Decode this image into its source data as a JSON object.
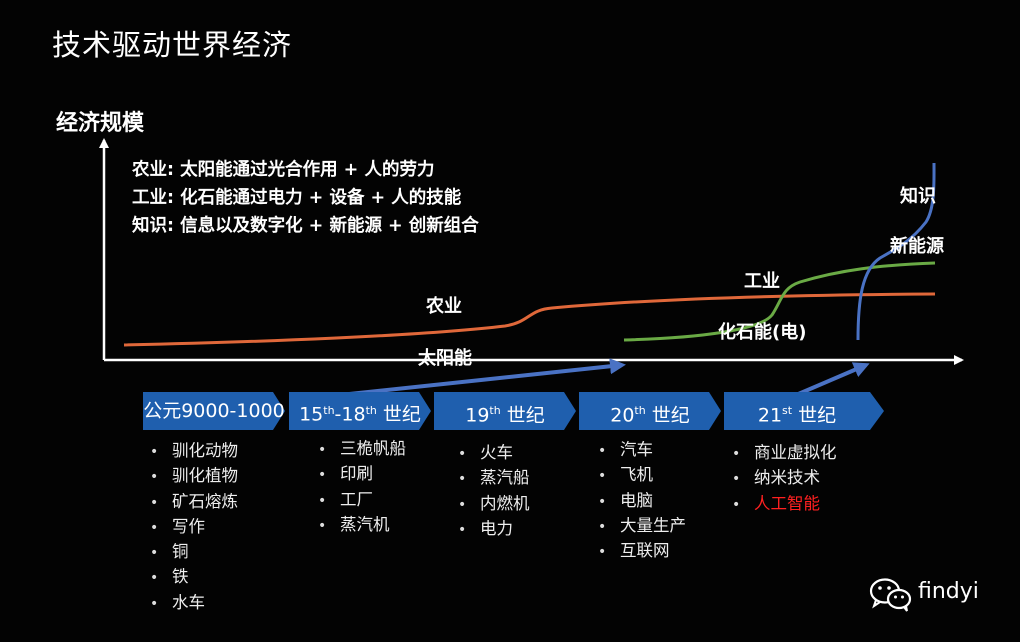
{
  "title": "技术驱动世界经济",
  "y_axis_label": "经济规模",
  "legend": [
    "农业: 太阳能通过光合作用 + 人的劳力",
    "工业: 化石能通过电力 + 设备 + 人的技能",
    "知识: 信息以及数字化 + 新能源 + 创新组合"
  ],
  "curve_labels": {
    "agriculture": "农业",
    "solar": "太阳能",
    "industry": "工业",
    "fossil": "化石能(电)",
    "knowledge": "知识",
    "new_energy": "新能源"
  },
  "colors": {
    "agriculture_curve": "#e0683a",
    "industry_curve": "#6aaa45",
    "knowledge_curve": "#4a72c4",
    "timeline_arrow": "#1f5fae",
    "highlight": "#ff2020"
  },
  "eras": [
    {
      "pre": "公元9000-1000",
      "sup1": "",
      "mid": "",
      "sup2": "",
      "post": ""
    },
    {
      "pre": "15",
      "sup1": "th",
      "mid": "-18",
      "sup2": "th",
      "post": " 世纪"
    },
    {
      "pre": "19",
      "sup1": "th",
      "mid": " 世纪",
      "sup2": "",
      "post": ""
    },
    {
      "pre": "20",
      "sup1": "th",
      "mid": " 世纪",
      "sup2": "",
      "post": ""
    },
    {
      "pre": "21",
      "sup1": "st",
      "mid": " 世纪",
      "sup2": "",
      "post": ""
    }
  ],
  "era_items": [
    [
      "驯化动物",
      "驯化植物",
      "矿石熔炼",
      "写作",
      "铜",
      "铁",
      "水车"
    ],
    [
      "三桅帆船",
      "印刷",
      "工厂",
      "蒸汽机"
    ],
    [
      "火车",
      "蒸汽船",
      "内燃机",
      "电力"
    ],
    [
      "汽车",
      "飞机",
      "电脑",
      "大量生产",
      "互联网"
    ],
    [
      "商业虚拟化",
      "纳米技术",
      "人工智能"
    ]
  ],
  "highlighted_item": "人工智能",
  "brand": {
    "name": "findyi",
    "icon": "wechat-icon"
  }
}
